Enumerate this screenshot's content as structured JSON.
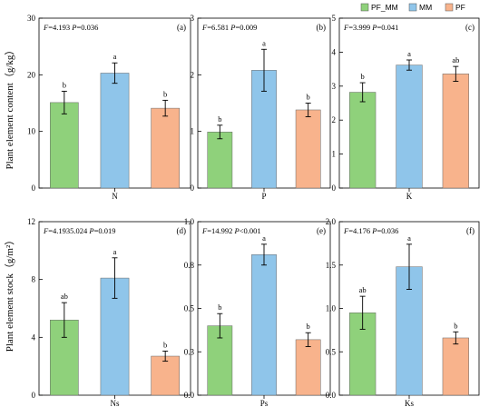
{
  "legend": [
    {
      "label": "PF_MM",
      "color": "#8fd17b"
    },
    {
      "label": "MM",
      "color": "#8fc5ea"
    },
    {
      "label": "PF",
      "color": "#f8b38c"
    }
  ],
  "row_labels": {
    "top": "Plant element content（g/kg）",
    "bottom": "Plant element stock（g/m²）"
  },
  "chart_data": [
    {
      "type": "bar",
      "tag": "(a)",
      "stat": {
        "f": "=4.193",
        "p": "=0.036"
      },
      "ylim": [
        0,
        30
      ],
      "yticks": [
        "0",
        "10",
        "20",
        "30"
      ],
      "ytick_values": [
        0,
        10,
        20,
        30
      ],
      "xlabel": "N",
      "series": [
        {
          "name": "PF_MM",
          "value": 15.1,
          "error": 2.0,
          "letter": "b"
        },
        {
          "name": "MM",
          "value": 20.3,
          "error": 1.8,
          "letter": "a"
        },
        {
          "name": "PF",
          "value": 14.1,
          "error": 1.4,
          "letter": "b"
        }
      ]
    },
    {
      "type": "bar",
      "tag": "(b)",
      "stat": {
        "f": "=6.581",
        "p": "=0.009"
      },
      "ylim": [
        0,
        3
      ],
      "yticks": [
        "0",
        "1",
        "2",
        "3"
      ],
      "ytick_values": [
        0,
        1,
        2,
        3
      ],
      "xlabel": "P",
      "series": [
        {
          "name": "PF_MM",
          "value": 0.99,
          "error": 0.12,
          "letter": "b"
        },
        {
          "name": "MM",
          "value": 2.08,
          "error": 0.37,
          "letter": "a"
        },
        {
          "name": "PF",
          "value": 1.38,
          "error": 0.12,
          "letter": "b"
        }
      ]
    },
    {
      "type": "bar",
      "tag": "(c)",
      "stat": {
        "f": "=3.999",
        "p": "=0.041"
      },
      "ylim": [
        0,
        5
      ],
      "yticks": [
        "0",
        "1",
        "2",
        "3",
        "4",
        "5"
      ],
      "ytick_values": [
        0,
        1,
        2,
        3,
        4,
        5
      ],
      "xlabel": "K",
      "series": [
        {
          "name": "PF_MM",
          "value": 2.82,
          "error": 0.28,
          "letter": "b"
        },
        {
          "name": "MM",
          "value": 3.62,
          "error": 0.15,
          "letter": "a"
        },
        {
          "name": "PF",
          "value": 3.36,
          "error": 0.22,
          "letter": "ab"
        }
      ]
    },
    {
      "type": "bar",
      "tag": "(d)",
      "stat": {
        "f": "=4.1935.024",
        "p": "=0.019"
      },
      "ylim": [
        0,
        12
      ],
      "yticks": [
        "0",
        "4",
        "8",
        "12"
      ],
      "ytick_values": [
        0,
        4,
        8,
        12
      ],
      "xlabel": "Ns",
      "series": [
        {
          "name": "PF_MM",
          "value": 5.2,
          "error": 1.2,
          "letter": "ab"
        },
        {
          "name": "MM",
          "value": 8.1,
          "error": 1.4,
          "letter": "a"
        },
        {
          "name": "PF",
          "value": 2.7,
          "error": 0.35,
          "letter": "b"
        }
      ]
    },
    {
      "type": "bar",
      "tag": "(e)",
      "stat": {
        "f": "=14.992",
        "p": "<0.001"
      },
      "ylim": [
        0,
        1.0
      ],
      "yticks": [
        "0.0",
        "0.3",
        "0.5",
        "0.8",
        "1.0"
      ],
      "ytick_values": [
        0,
        0.25,
        0.5,
        0.75,
        1.0
      ],
      "xlabel": "Ps",
      "series": [
        {
          "name": "PF_MM",
          "value": 0.4,
          "error": 0.07,
          "letter": "b"
        },
        {
          "name": "MM",
          "value": 0.81,
          "error": 0.06,
          "letter": "a"
        },
        {
          "name": "PF",
          "value": 0.32,
          "error": 0.04,
          "letter": "b"
        }
      ]
    },
    {
      "type": "bar",
      "tag": "(f)",
      "stat": {
        "f": "=4.176",
        "p": "=0.036"
      },
      "ylim": [
        0,
        2.0
      ],
      "yticks": [
        "0.0",
        "0.5",
        "1.0",
        "1.5",
        "2.0"
      ],
      "ytick_values": [
        0,
        0.5,
        1.0,
        1.5,
        2.0
      ],
      "xlabel": "Ks",
      "series": [
        {
          "name": "PF_MM",
          "value": 0.95,
          "error": 0.19,
          "letter": "ab"
        },
        {
          "name": "MM",
          "value": 1.48,
          "error": 0.26,
          "letter": "a"
        },
        {
          "name": "PF",
          "value": 0.66,
          "error": 0.07,
          "letter": "b"
        }
      ]
    }
  ]
}
